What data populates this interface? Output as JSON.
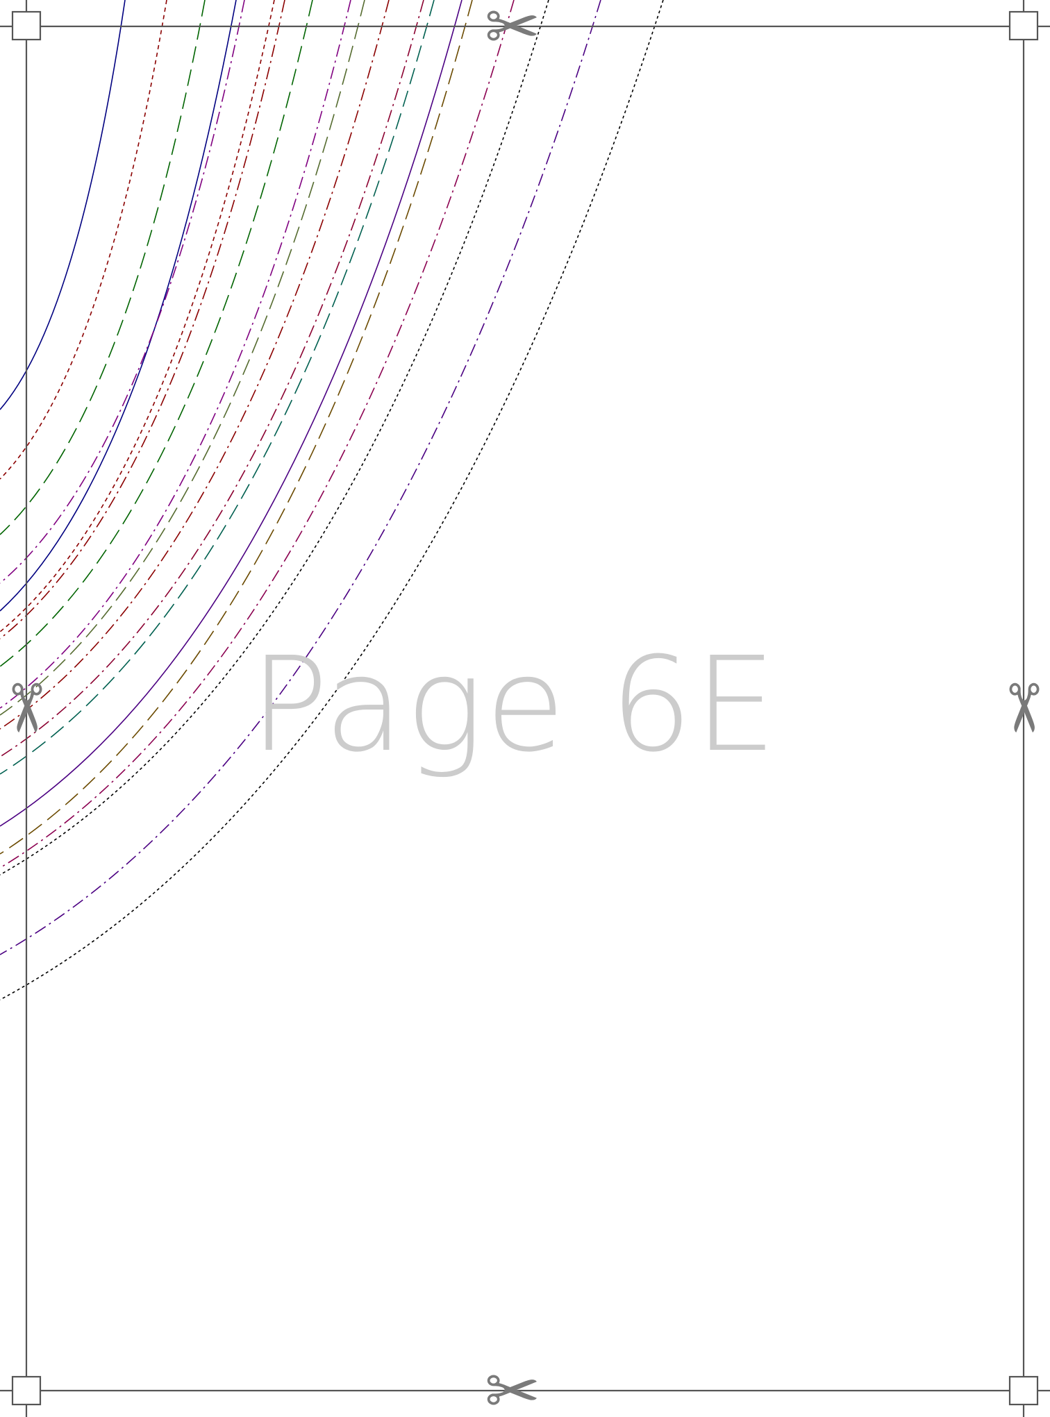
{
  "page_label": "Page 6E",
  "colors": {
    "page_background": "#ffffff",
    "cut_line": "#555555",
    "label": "#cccccc",
    "scissors": "#7a7a7a"
  },
  "icons": {
    "corner_marker": "square-corner-mark",
    "cut_marker": "scissors-icon"
  },
  "size_lines": [
    {
      "color": "#000080",
      "dash": "solid"
    },
    {
      "color": "#8b0000",
      "dash": "short-dash"
    },
    {
      "color": "#006400",
      "dash": "long-dash"
    },
    {
      "color": "#000080",
      "dash": "solid"
    },
    {
      "color": "#800080",
      "dash": "dash-dot"
    },
    {
      "color": "#8b0000",
      "dash": "short-dash"
    },
    {
      "color": "#8b0000",
      "dash": "dash-dot"
    },
    {
      "color": "#006400",
      "dash": "long-dash"
    },
    {
      "color": "#800080",
      "dash": "dash-dot"
    },
    {
      "color": "#556b2f",
      "dash": "long-dash"
    },
    {
      "color": "#8b0000",
      "dash": "dash-dot"
    },
    {
      "color": "#8b0030",
      "dash": "dash-dot"
    },
    {
      "color": "#006050",
      "dash": "long-dash"
    },
    {
      "color": "#4b0082",
      "dash": "solid"
    },
    {
      "color": "#6b4a00",
      "dash": "long-dash"
    },
    {
      "color": "#8b0050",
      "dash": "dash-dot"
    },
    {
      "color": "#000000",
      "dash": "dotted"
    },
    {
      "color": "#4b0082",
      "dash": "dash-dot"
    },
    {
      "color": "#000000",
      "dash": "dotted"
    }
  ]
}
